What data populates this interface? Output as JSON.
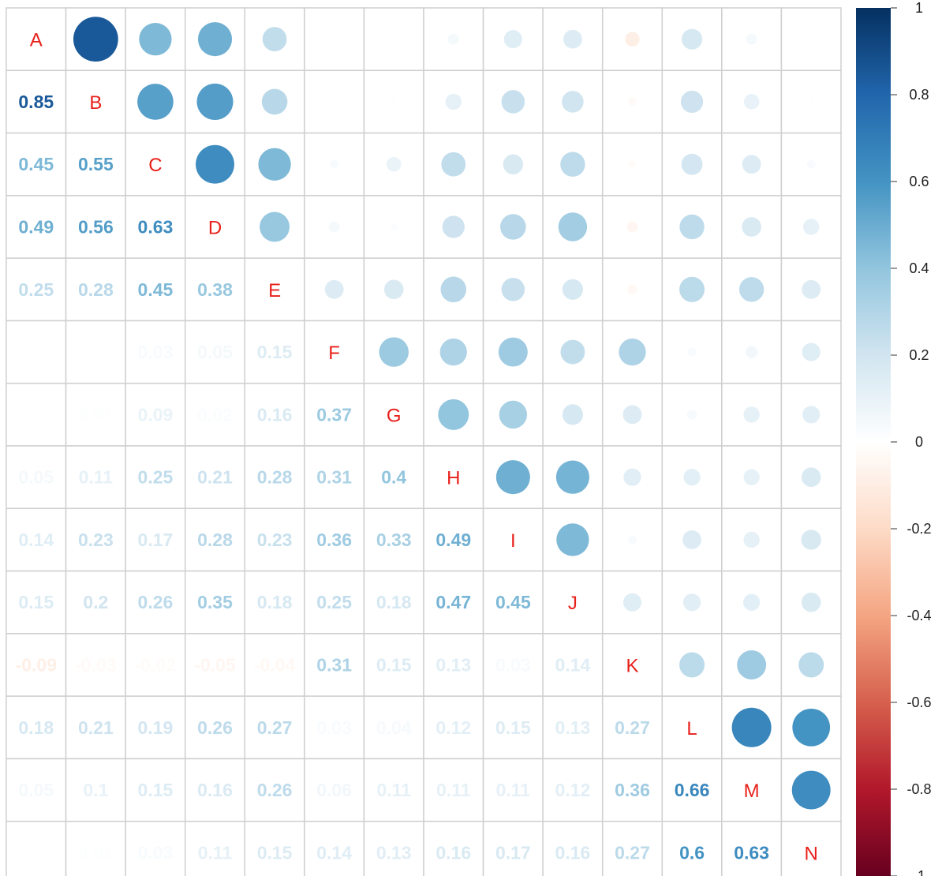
{
  "chart_data": {
    "type": "heatmap",
    "variables": [
      "A",
      "B",
      "C",
      "D",
      "E",
      "F",
      "G",
      "H",
      "I",
      "J",
      "K",
      "L",
      "M",
      "N"
    ],
    "colorbar_ticks": [
      "1",
      "0.8",
      "0.6",
      "0.4",
      "0.2",
      "0",
      "-0.2",
      "-0.4",
      "-0.6",
      "-0.8",
      "-1"
    ],
    "colorbar_range": [
      -1,
      1
    ],
    "lower_triangle_method": "number",
    "upper_triangle_method": "circle",
    "diagonal": "variable-labels",
    "grid": true,
    "legend_position": "right",
    "label_color": "#E8201A",
    "color_scale": [
      {
        "v": -1.0,
        "c": "#67001F"
      },
      {
        "v": -0.8,
        "c": "#B2182B"
      },
      {
        "v": -0.6,
        "c": "#D6604D"
      },
      {
        "v": -0.4,
        "c": "#F4A582"
      },
      {
        "v": -0.2,
        "c": "#FDDBC7"
      },
      {
        "v": 0.0,
        "c": "#FFFFFF"
      },
      {
        "v": 0.2,
        "c": "#D1E5F0"
      },
      {
        "v": 0.4,
        "c": "#92C5DE"
      },
      {
        "v": 0.6,
        "c": "#4393C3"
      },
      {
        "v": 0.8,
        "c": "#2166AC"
      },
      {
        "v": 1.0,
        "c": "#053061"
      }
    ],
    "lower_labels": [
      [],
      [
        "0.85"
      ],
      [
        "0.45",
        "0.55"
      ],
      [
        "0.49",
        "0.56",
        "0.63"
      ],
      [
        "0.25",
        "0.28",
        "0.45",
        "0.38"
      ],
      [
        "",
        "",
        "0.03",
        "0.05",
        "0.15"
      ],
      [
        "",
        "0.01",
        "0.09",
        "0.02",
        "0.16",
        "0.37"
      ],
      [
        "0.05",
        "0.11",
        "0.25",
        "0.21",
        "0.28",
        "0.31",
        "0.4"
      ],
      [
        "0.14",
        "0.23",
        "0.17",
        "0.28",
        "0.23",
        "0.36",
        "0.33",
        "0.49"
      ],
      [
        "0.15",
        "0.2",
        "0.26",
        "0.35",
        "0.18",
        "0.25",
        "0.18",
        "0.47",
        "0.45"
      ],
      [
        "-0.09",
        "-0.03",
        "-0.02",
        "-0.05",
        "-0.04",
        "0.31",
        "0.15",
        "0.13",
        "0.03",
        "0.14"
      ],
      [
        "0.18",
        "0.21",
        "0.19",
        "0.26",
        "0.27",
        "0.03",
        "0.04",
        "0.12",
        "0.15",
        "0.13",
        "0.27"
      ],
      [
        "0.05",
        "0.1",
        "0.15",
        "0.16",
        "0.26",
        "0.06",
        "0.11",
        "0.11",
        "0.11",
        "0.12",
        "0.36",
        "0.66"
      ],
      [
        "",
        "0.01",
        "0.03",
        "0.11",
        "0.15",
        "0.14",
        "0.13",
        "0.16",
        "0.17",
        "0.16",
        "0.27",
        "0.6",
        "0.63"
      ]
    ],
    "matrix": [
      [
        1,
        0.85,
        0.45,
        0.49,
        0.25,
        0,
        0,
        0.05,
        0.14,
        0.15,
        -0.09,
        0.18,
        0.05,
        0
      ],
      [
        0.85,
        1,
        0.55,
        0.56,
        0.28,
        0,
        0.01,
        0.11,
        0.23,
        0.2,
        -0.03,
        0.21,
        0.1,
        0.01
      ],
      [
        0.45,
        0.55,
        1,
        0.63,
        0.45,
        0.03,
        0.09,
        0.25,
        0.17,
        0.26,
        -0.02,
        0.19,
        0.15,
        0.03
      ],
      [
        0.49,
        0.56,
        0.63,
        1,
        0.38,
        0.05,
        0.02,
        0.21,
        0.28,
        0.35,
        -0.05,
        0.26,
        0.16,
        0.11
      ],
      [
        0.25,
        0.28,
        0.45,
        0.38,
        1,
        0.15,
        0.16,
        0.28,
        0.23,
        0.18,
        -0.04,
        0.27,
        0.26,
        0.15
      ],
      [
        0,
        0,
        0.03,
        0.05,
        0.15,
        1,
        0.37,
        0.31,
        0.36,
        0.25,
        0.31,
        0.03,
        0.06,
        0.14
      ],
      [
        0,
        0.01,
        0.09,
        0.02,
        0.16,
        0.37,
        1,
        0.4,
        0.33,
        0.18,
        0.15,
        0.04,
        0.11,
        0.13
      ],
      [
        0.05,
        0.11,
        0.25,
        0.21,
        0.28,
        0.31,
        0.4,
        1,
        0.49,
        0.47,
        0.13,
        0.12,
        0.11,
        0.16
      ],
      [
        0.14,
        0.23,
        0.17,
        0.28,
        0.23,
        0.36,
        0.33,
        0.49,
        1,
        0.45,
        0.03,
        0.15,
        0.11,
        0.17
      ],
      [
        0.15,
        0.2,
        0.26,
        0.35,
        0.18,
        0.25,
        0.18,
        0.47,
        0.45,
        1,
        0.14,
        0.13,
        0.12,
        0.16
      ],
      [
        -0.09,
        -0.03,
        -0.02,
        -0.05,
        -0.04,
        0.31,
        0.15,
        0.13,
        0.03,
        0.14,
        1,
        0.27,
        0.36,
        0.27
      ],
      [
        0.18,
        0.21,
        0.19,
        0.26,
        0.27,
        0.03,
        0.04,
        0.12,
        0.15,
        0.13,
        0.27,
        1,
        0.66,
        0.6
      ],
      [
        0.05,
        0.1,
        0.15,
        0.16,
        0.26,
        0.06,
        0.11,
        0.11,
        0.11,
        0.12,
        0.36,
        0.66,
        1,
        0.63
      ],
      [
        0,
        0.01,
        0.03,
        0.11,
        0.15,
        0.14,
        0.13,
        0.16,
        0.17,
        0.16,
        0.27,
        0.6,
        0.63,
        1
      ]
    ]
  }
}
